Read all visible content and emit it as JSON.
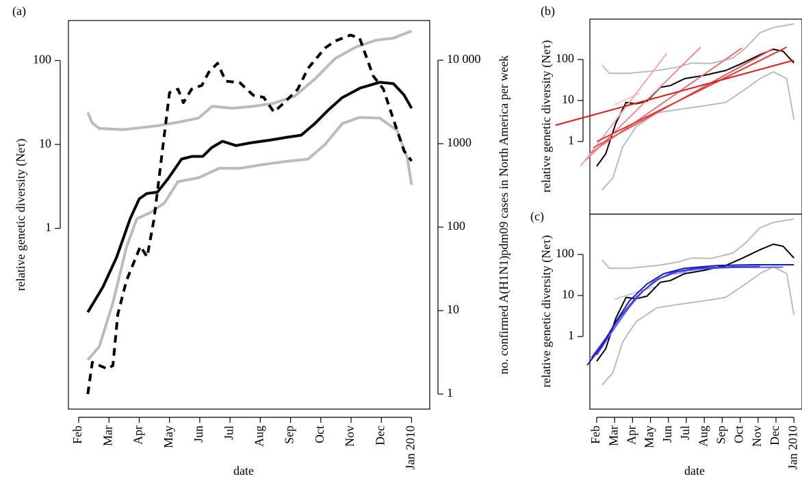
{
  "chart_data": [
    {
      "type": "line",
      "label": "(a)",
      "xlabel": "date",
      "ylabel": "relative genetic diversity (Neτ)",
      "y2label": "no. confirmed A(H1N1)pdm09 cases in North America per week",
      "log_scale": true,
      "xlim": [
        -0.34,
        11.6
      ],
      "xticks": [
        {
          "value": 0,
          "label": "Feb"
        },
        {
          "value": 1,
          "label": "Mar"
        },
        {
          "value": 2,
          "label": "Apr"
        },
        {
          "value": 3,
          "label": "May"
        },
        {
          "value": 4,
          "label": "Jun"
        },
        {
          "value": 5,
          "label": "Jul"
        },
        {
          "value": 6,
          "label": "Aug"
        },
        {
          "value": 7,
          "label": "Sep"
        },
        {
          "value": 8,
          "label": "Oct"
        },
        {
          "value": 9,
          "label": "Nov"
        },
        {
          "value": 10,
          "label": "Dec"
        },
        {
          "value": 11,
          "label": "Jan 2010"
        }
      ],
      "ylim": [
        0.007,
        300
      ],
      "yticks": [
        1,
        10,
        100
      ],
      "y2lim": [
        0.66,
        29900
      ],
      "y2ticks": [
        1,
        10,
        100,
        1000,
        {
          "value": 10000,
          "label": "10 000"
        }
      ],
      "series": [
        {
          "color": "#bbbbbb",
          "x": [
            0.3,
            0.45,
            0.68,
            1.47,
            2.6,
            3.28,
            3.96,
            4.41,
            5.09,
            5.77,
            6.45,
            7.13,
            7.8,
            8.48,
            9.16,
            9.84,
            10.4,
            11
          ],
          "values": [
            24,
            18,
            15.5,
            15,
            16.7,
            18.4,
            20.6,
            28.5,
            27,
            28.5,
            31,
            37.5,
            60,
            106,
            145,
            175,
            185,
            225
          ]
        },
        {
          "color": "#bbbbbb",
          "x": [
            0.3,
            0.68,
            1.13,
            1.58,
            1.92,
            2.38,
            2.83,
            3.28,
            3.96,
            4.64,
            5.32,
            6.0,
            6.9,
            7.58,
            8.14,
            8.71,
            9.28,
            9.95,
            10.52,
            10.86,
            11
          ],
          "values": [
            0.027,
            0.039,
            0.13,
            0.6,
            1.3,
            1.55,
            2.0,
            3.6,
            4.0,
            5.2,
            5.2,
            5.7,
            6.3,
            6.7,
            10,
            17.7,
            21,
            20.6,
            14.7,
            6.9,
            3.3
          ]
        },
        {
          "color": "#000000",
          "x": [
            0.3,
            0.8,
            1.25,
            1.7,
            2.0,
            2.25,
            2.6,
            2.95,
            3.4,
            3.75,
            4.1,
            4.4,
            4.75,
            5.2,
            5.65,
            6.35,
            6.9,
            7.35,
            7.8,
            8.25,
            8.7,
            9.3,
            9.95,
            10.4,
            10.75,
            11
          ],
          "values": [
            0.1,
            0.2,
            0.45,
            1.3,
            2.25,
            2.6,
            2.7,
            3.9,
            6.7,
            7.2,
            7.2,
            9.2,
            10.9,
            9.7,
            10.4,
            11.3,
            12.2,
            12.9,
            17.7,
            25.8,
            36,
            47,
            55,
            53,
            39,
            27
          ]
        },
        {
          "color": "#000000",
          "dashed": true,
          "axis": "y2",
          "x": [
            0.3,
            0.45,
            0.95,
            1.13,
            1.29,
            1.58,
            2.04,
            2.26,
            2.49,
            2.71,
            3.0,
            3.28,
            3.46,
            3.73,
            4.07,
            4.3,
            4.59,
            4.86,
            5.32,
            5.77,
            6.11,
            6.45,
            6.79,
            7.24,
            7.58,
            8.14,
            8.48,
            8.98,
            9.28,
            9.73,
            10.07,
            10.41,
            10.75,
            11
          ],
          "values": [
            1,
            2.4,
            2.0,
            2.2,
            9,
            23,
            59,
            44,
            125,
            570,
            4100,
            4500,
            3100,
            4500,
            5000,
            7200,
            9200,
            5600,
            5400,
            3800,
            3600,
            2400,
            3100,
            4500,
            8000,
            14000,
            17000,
            20000,
            18500,
            6500,
            4500,
            1900,
            820,
            620
          ]
        }
      ]
    },
    {
      "type": "line",
      "label": "(b)",
      "ylabel": "relative genetic diversity (Neτ)",
      "log_scale": true,
      "xlim": [
        -0.38,
        11.45
      ],
      "ylim": [
        0.017,
        960
      ],
      "yticks": [
        1,
        10,
        100
      ],
      "series": [
        {
          "color": "#bbbbbb",
          "x": [
            0.3,
            0.7,
            1.8,
            3.4,
            4.5,
            5.3,
            6.4,
            7.6,
            8.3,
            9.1,
            9.85,
            11
          ],
          "values": [
            73,
            46,
            46,
            54,
            65,
            82,
            80,
            108,
            190,
            445,
            600,
            735
          ]
        },
        {
          "color": "#bbbbbb",
          "x": [
            0.3,
            0.9,
            1.45,
            2.2,
            3.36,
            4.5,
            6,
            7.2,
            8.3,
            9.1,
            9.85,
            10.6,
            11
          ],
          "values": [
            0.066,
            0.13,
            0.74,
            2.3,
            5,
            6,
            7.4,
            9,
            19,
            34,
            50,
            34,
            3.4
          ]
        },
        {
          "color": "#000000",
          "x": [
            0,
            0.5,
            1.07,
            1.64,
            2.2,
            2.8,
            3.55,
            4.1,
            4.9,
            6.0,
            7.2,
            8.1,
            9.1,
            9.85,
            10.4,
            11
          ],
          "values": [
            0.25,
            0.5,
            2.8,
            9,
            8.3,
            9.6,
            21,
            23,
            34,
            41,
            54,
            80,
            130,
            177,
            158,
            82
          ]
        },
        {
          "color": "#f9c9c9",
          "x": [
            1,
            2.4
          ],
          "values": [
            8,
            15
          ]
        },
        {
          "color": "#f4a9a9",
          "x": [
            -0.9,
            3.9
          ],
          "values": [
            0.25,
            140
          ]
        },
        {
          "color": "#f08c8c",
          "x": [
            -0.6,
            5.8
          ],
          "values": [
            0.35,
            200
          ]
        },
        {
          "color": "#ec6e6e",
          "x": [
            -0.4,
            8.1
          ],
          "values": [
            0.5,
            190
          ]
        },
        {
          "color": "#e85252",
          "x": [
            -0.2,
            9.8
          ],
          "values": [
            0.7,
            180
          ]
        },
        {
          "color": "#e43636",
          "x": [
            0,
            10.6
          ],
          "values": [
            1.0,
            200
          ]
        },
        {
          "color": "#e01b1b",
          "x": [
            -2.3,
            11
          ],
          "values": [
            2.5,
            96
          ]
        }
      ]
    },
    {
      "type": "line",
      "label": "(c)",
      "xlabel": "date",
      "ylabel": "relative genetic diversity (Neτ)",
      "log_scale": true,
      "xlim": [
        -0.38,
        11.45
      ],
      "ylim": [
        0.017,
        960
      ],
      "yticks": [
        1,
        10,
        100
      ],
      "xticks": [
        {
          "value": 0,
          "label": "Feb"
        },
        {
          "value": 1,
          "label": "Mar"
        },
        {
          "value": 2,
          "label": "Apr"
        },
        {
          "value": 3,
          "label": "May"
        },
        {
          "value": 4,
          "label": "Jun"
        },
        {
          "value": 5,
          "label": "Jul"
        },
        {
          "value": 6,
          "label": "Aug"
        },
        {
          "value": 7,
          "label": "Sep"
        },
        {
          "value": 8,
          "label": "Oct"
        },
        {
          "value": 9,
          "label": "Nov"
        },
        {
          "value": 10,
          "label": "Dec"
        },
        {
          "value": 11,
          "label": "Jan 2010"
        }
      ],
      "series": [
        {
          "color": "#bbbbbb",
          "x": [
            0.3,
            0.7,
            1.8,
            3.4,
            4.5,
            5.3,
            6.4,
            7.6,
            8.3,
            9.1,
            9.85,
            11
          ],
          "values": [
            73,
            46,
            46,
            54,
            65,
            82,
            80,
            108,
            190,
            445,
            600,
            735
          ]
        },
        {
          "color": "#bbbbbb",
          "x": [
            0.3,
            0.9,
            1.45,
            2.2,
            3.36,
            4.5,
            6,
            7.2,
            8.3,
            9.1,
            9.85,
            10.6,
            11
          ],
          "values": [
            0.066,
            0.13,
            0.74,
            2.3,
            5,
            6,
            7.4,
            9,
            19,
            34,
            50,
            34,
            3.4
          ]
        },
        {
          "color": "#000000",
          "x": [
            0,
            0.5,
            1.07,
            1.64,
            2.2,
            2.8,
            3.55,
            4.1,
            4.9,
            6.0,
            7.2,
            8.1,
            9.1,
            9.85,
            10.4,
            11
          ],
          "values": [
            0.25,
            0.5,
            2.8,
            9,
            8.3,
            9.6,
            21,
            23,
            34,
            41,
            54,
            80,
            130,
            177,
            158,
            82
          ]
        },
        {
          "color": "#c0c0f4",
          "x": [
            1,
            2.2,
            3.2
          ],
          "values": [
            8,
            12,
            16
          ]
        },
        {
          "color": "#9a9aec",
          "x": [
            0.2,
            1,
            1.8,
            2.6,
            3.4,
            4.2,
            5
          ],
          "values": [
            0.5,
            1.6,
            5,
            13,
            25,
            33,
            37
          ]
        },
        {
          "color": "#5c5ce0",
          "x": [
            0,
            0.8,
            1.6,
            2.5,
            3.5,
            4.5,
            6,
            7.5,
            10.4
          ],
          "values": [
            0.35,
            1.2,
            4,
            12,
            26,
            38,
            45,
            48,
            49
          ]
        },
        {
          "color": "#3a3ad6",
          "x": [
            -0.3,
            0.5,
            1.3,
            2.2,
            3.2,
            4.2,
            5.5,
            7.5,
            9.1
          ],
          "values": [
            0.3,
            0.9,
            3,
            9,
            22,
            36,
            46,
            50,
            51
          ]
        },
        {
          "color": "#1515cc",
          "x": [
            -0.53,
            0.3,
            1.07,
            1.83,
            2.8,
            3.74,
            4.9,
            6.8,
            8.7,
            11
          ],
          "values": [
            0.2,
            0.6,
            2.3,
            7.4,
            19,
            34,
            46,
            54,
            56,
            56
          ]
        }
      ]
    }
  ]
}
